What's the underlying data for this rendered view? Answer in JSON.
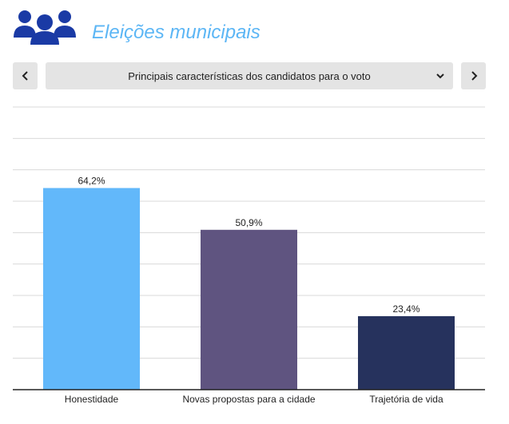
{
  "header": {
    "title": "Eleições municipais",
    "icon": "people-group-icon",
    "icon_color": "#1a3aa5"
  },
  "selector": {
    "label": "Principais características dos candidatos para o voto",
    "prev_icon": "chevron-left-icon",
    "next_icon": "chevron-right-icon",
    "dropdown_icon": "chevron-down-icon"
  },
  "chart_data": {
    "type": "bar",
    "title": "",
    "xlabel": "",
    "ylabel": "",
    "categories": [
      "Honestidade",
      "Novas propostas para a cidade",
      "Trajetória de vida"
    ],
    "values": [
      64.2,
      50.9,
      23.4
    ],
    "value_labels": [
      "64,2%",
      "50,9%",
      "23,4%"
    ],
    "colors": [
      "#62b8fa",
      "#5f5480",
      "#26325d"
    ],
    "ylim": [
      0,
      90
    ],
    "grid": true,
    "legend": "none"
  }
}
